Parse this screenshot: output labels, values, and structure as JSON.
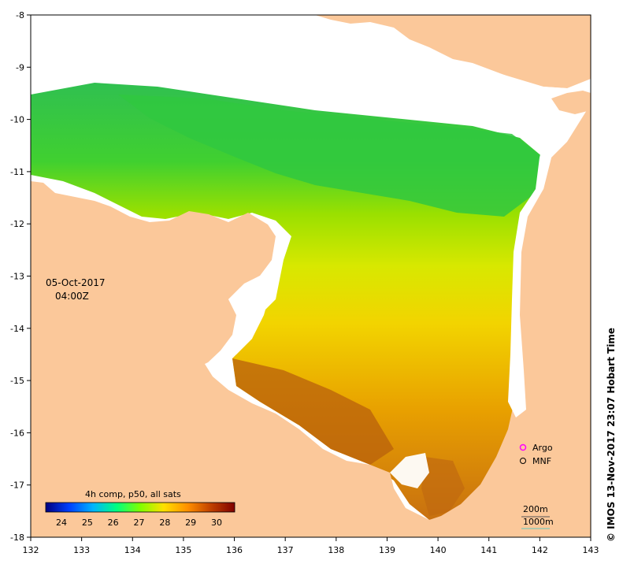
{
  "map": {
    "date": "05-Oct-2017",
    "time": "04:00Z",
    "credit": "© IMOS 13-Nov-2017 23:07 Hobart Time",
    "lon_ticks": [
      "132",
      "133",
      "134",
      "135",
      "136",
      "137",
      "138",
      "139",
      "140",
      "141",
      "142",
      "143"
    ],
    "lat_ticks": [
      "-8",
      "-9",
      "-10",
      "-11",
      "-12",
      "-13",
      "-14",
      "-15",
      "-16",
      "-17",
      "-18"
    ],
    "legend": {
      "argo_label": "Argo",
      "mnf_label": "MNF",
      "argo_color": "#ff00ff",
      "mnf_color": "#000000"
    },
    "contours": {
      "c200": "200m",
      "c1000": "1000m",
      "c1000_color": "#5fc9c0"
    },
    "colorbar": {
      "title": "4h comp, p50, all sats",
      "labels": [
        "24",
        "25",
        "26",
        "27",
        "28",
        "29",
        "30"
      ],
      "stops": [
        "#000080",
        "#0040ff",
        "#00b4ff",
        "#00ff80",
        "#80ff00",
        "#ffe000",
        "#ff9000",
        "#c04000",
        "#800000"
      ]
    },
    "colors": {
      "land": "#fbc89a",
      "warm": "#f5c000",
      "hot": "#b85a10",
      "cool": "#20c040"
    }
  }
}
